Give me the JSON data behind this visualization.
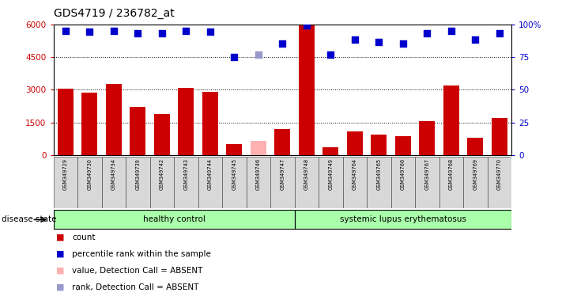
{
  "title": "GDS4719 / 236782_at",
  "samples": [
    "GSM349729",
    "GSM349730",
    "GSM349734",
    "GSM349739",
    "GSM349742",
    "GSM349743",
    "GSM349744",
    "GSM349745",
    "GSM349746",
    "GSM349747",
    "GSM349748",
    "GSM349749",
    "GSM349764",
    "GSM349765",
    "GSM349766",
    "GSM349767",
    "GSM349768",
    "GSM349769",
    "GSM349770"
  ],
  "counts": [
    3050,
    2850,
    3250,
    2200,
    1900,
    3100,
    2900,
    500,
    null,
    1200,
    5950,
    350,
    1100,
    950,
    850,
    1550,
    3200,
    800,
    1700
  ],
  "absent_counts": [
    null,
    null,
    null,
    null,
    null,
    null,
    null,
    null,
    650,
    null,
    null,
    null,
    null,
    null,
    null,
    null,
    null,
    null,
    null
  ],
  "ranks_pct": [
    95.0,
    94.2,
    95.0,
    93.3,
    93.0,
    95.0,
    94.2,
    75.0,
    null,
    85.0,
    99.2,
    76.7,
    88.3,
    86.7,
    85.0,
    93.3,
    95.0,
    88.3,
    93.3
  ],
  "absent_ranks_pct": [
    null,
    null,
    null,
    null,
    null,
    null,
    null,
    null,
    76.7,
    null,
    null,
    null,
    null,
    null,
    null,
    null,
    null,
    null,
    null
  ],
  "healthy_count": 10,
  "group_healthy": "healthy control",
  "group_sle": "systemic lupus erythematosus",
  "disease_state_label": "disease state",
  "ylim_left": [
    0,
    6000
  ],
  "ylim_right": [
    0,
    100
  ],
  "yticks_left": [
    0,
    1500,
    3000,
    4500,
    6000
  ],
  "yticks_right": [
    0,
    25,
    50,
    75,
    100
  ],
  "bar_color": "#cc0000",
  "absent_bar_color": "#ffb0b0",
  "rank_color": "#0000cc",
  "absent_rank_color": "#9999cc",
  "legend_items": [
    {
      "label": "count",
      "color": "#cc0000"
    },
    {
      "label": "percentile rank within the sample",
      "color": "#0000cc"
    },
    {
      "label": "value, Detection Call = ABSENT",
      "color": "#ffb0b0"
    },
    {
      "label": "rank, Detection Call = ABSENT",
      "color": "#9999cc"
    }
  ]
}
